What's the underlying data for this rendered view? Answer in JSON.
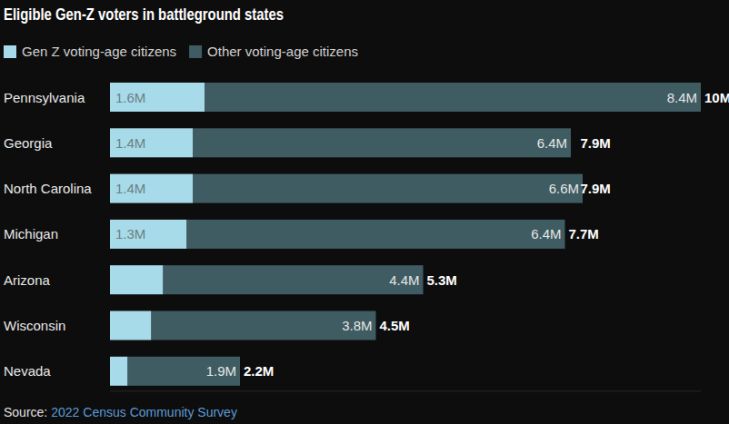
{
  "chart_data": {
    "type": "bar",
    "orientation": "horizontal",
    "stacked": true,
    "data_labels": true,
    "tick_labels": "y",
    "grid": false,
    "legend": "top-left",
    "title": "Eligible Gen-Z voters in battleground states",
    "categories": [
      "Pennsylvania",
      "Georgia",
      "North Carolina",
      "Michigan",
      "Arizona",
      "Wisconsin",
      "Nevada"
    ],
    "series": [
      {
        "name": "Gen Z voting-age citizens",
        "color": "#a8dbe9",
        "values": [
          1.6,
          1.4,
          1.4,
          1.3,
          0.9,
          0.7,
          0.3
        ],
        "value_labels": [
          "1.6M",
          "1.4M",
          "1.4M",
          "1.3M",
          null,
          null,
          null
        ]
      },
      {
        "name": "Other voting-age citizens",
        "color": "#3f5c62",
        "values": [
          8.4,
          6.4,
          6.6,
          6.4,
          4.4,
          3.8,
          1.9
        ],
        "value_labels": [
          "8.4M",
          "6.4M",
          "6.6M",
          "6.4M",
          "4.4M",
          "3.8M",
          "1.9M"
        ]
      }
    ],
    "totals": [
      10,
      7.9,
      7.9,
      7.7,
      5.3,
      4.5,
      2.2
    ],
    "total_labels": [
      "10M",
      "7.9M",
      "7.9M",
      "7.7M",
      "5.3M",
      "4.5M",
      "2.2M"
    ],
    "xlim": [
      0,
      10
    ],
    "source_label": "Source:",
    "source": "2022 Census Community Survey"
  }
}
